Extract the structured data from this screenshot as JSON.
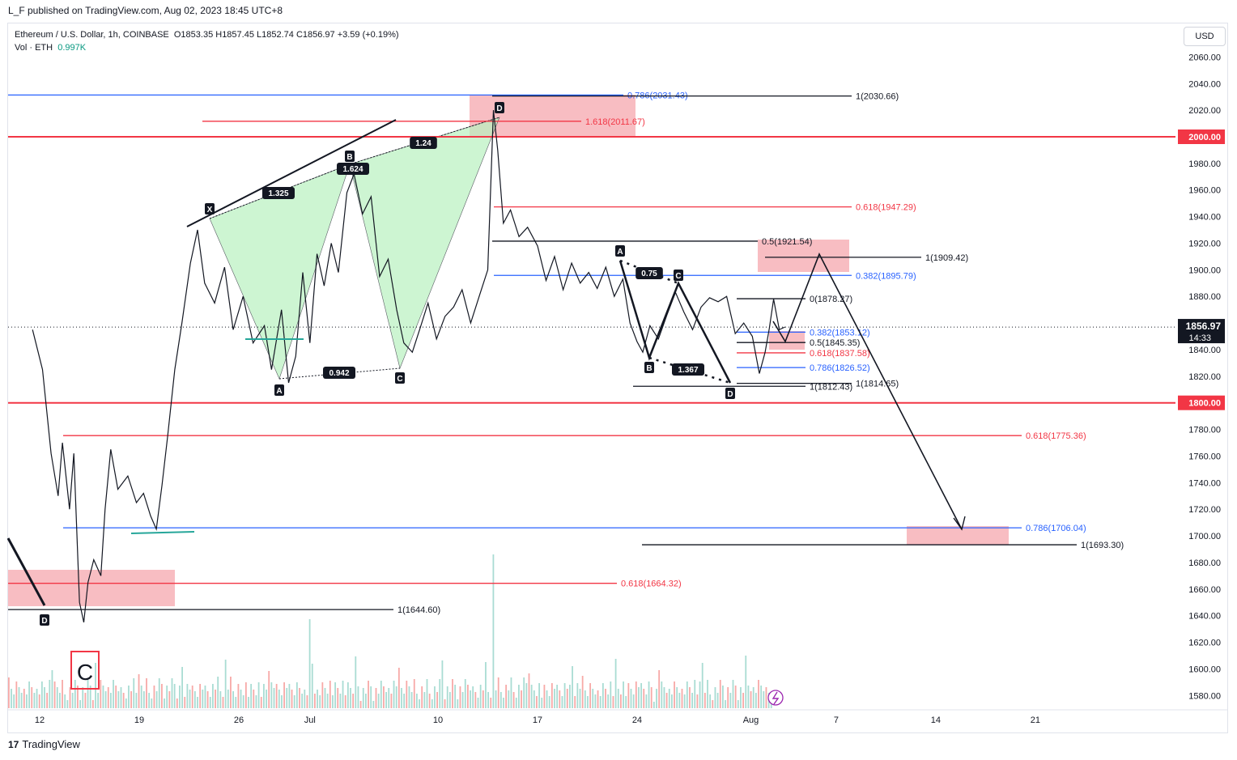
{
  "header": {
    "published": "L_F published on TradingView.com, Aug 02, 2023 18:45 UTC+8",
    "symbol": "Ethereum / U.S. Dollar, 1h, COINBASE",
    "ohlc": "O1853.35  H1857.45  L1852.74  C1856.97  +3.59 (+0.19%)",
    "volume_label": "Vol · ETH",
    "volume_value": "0.997K",
    "currency": "USD"
  },
  "footer": {
    "brand": "TradingView",
    "logo": "17"
  },
  "chart_data": {
    "type": "line",
    "title": "Ethereum / U.S. Dollar, 1h, COINBASE",
    "ylim": [
      1570,
      2075
    ],
    "y_ticks": [
      1580,
      1600,
      1620,
      1640,
      1660,
      1680,
      1700,
      1720,
      1740,
      1760,
      1780,
      1800,
      1820,
      1840,
      1860,
      1880,
      1900,
      1920,
      1940,
      1960,
      1980,
      2000,
      2020,
      2040,
      2060
    ],
    "x_ticks": [
      "12",
      "19",
      "26",
      "Jul",
      "10",
      "17",
      "24",
      "Aug",
      "7",
      "14",
      "21"
    ],
    "x_tick_days": [
      12,
      19,
      26,
      31,
      40,
      47,
      54,
      62,
      68,
      75,
      82
    ],
    "last_price": "1856.97",
    "countdown": "14:33",
    "price_path": [
      [
        11.5,
        1855
      ],
      [
        12.2,
        1825
      ],
      [
        12.8,
        1762
      ],
      [
        13.3,
        1730
      ],
      [
        13.6,
        1770
      ],
      [
        14.1,
        1720
      ],
      [
        14.4,
        1762
      ],
      [
        14.8,
        1650
      ],
      [
        15.1,
        1635
      ],
      [
        15.4,
        1665
      ],
      [
        15.8,
        1682
      ],
      [
        16.3,
        1670
      ],
      [
        16.6,
        1720
      ],
      [
        17.0,
        1765
      ],
      [
        17.5,
        1735
      ],
      [
        18.2,
        1745
      ],
      [
        18.8,
        1725
      ],
      [
        19.3,
        1732
      ],
      [
        19.8,
        1715
      ],
      [
        20.2,
        1705
      ],
      [
        20.6,
        1738
      ],
      [
        21.0,
        1775
      ],
      [
        21.5,
        1825
      ],
      [
        22.0,
        1860
      ],
      [
        22.6,
        1905
      ],
      [
        23.1,
        1930
      ],
      [
        23.6,
        1890
      ],
      [
        24.3,
        1875
      ],
      [
        25.0,
        1902
      ],
      [
        25.6,
        1855
      ],
      [
        26.3,
        1880
      ],
      [
        27.0,
        1845
      ],
      [
        27.8,
        1858
      ],
      [
        28.3,
        1825
      ],
      [
        29.0,
        1870
      ],
      [
        29.5,
        1815
      ],
      [
        30.0,
        1835
      ],
      [
        30.5,
        1898
      ],
      [
        31.0,
        1845
      ],
      [
        31.5,
        1912
      ],
      [
        32.0,
        1888
      ],
      [
        32.5,
        1920
      ],
      [
        33.0,
        1898
      ],
      [
        33.6,
        1958
      ],
      [
        34.1,
        1972
      ],
      [
        34.7,
        1942
      ],
      [
        35.3,
        1955
      ],
      [
        35.9,
        1895
      ],
      [
        36.5,
        1908
      ],
      [
        37.1,
        1870
      ],
      [
        37.6,
        1845
      ],
      [
        38.2,
        1838
      ],
      [
        38.8,
        1858
      ],
      [
        39.3,
        1875
      ],
      [
        39.9,
        1848
      ],
      [
        40.5,
        1865
      ],
      [
        41.1,
        1872
      ],
      [
        41.7,
        1885
      ],
      [
        42.3,
        1860
      ],
      [
        42.9,
        1880
      ],
      [
        43.5,
        1900
      ],
      [
        43.9,
        2020
      ],
      [
        44.2,
        1990
      ],
      [
        44.6,
        1935
      ],
      [
        45.1,
        1945
      ],
      [
        45.7,
        1925
      ],
      [
        46.3,
        1932
      ],
      [
        47.0,
        1918
      ],
      [
        47.6,
        1892
      ],
      [
        48.2,
        1910
      ],
      [
        48.8,
        1885
      ],
      [
        49.4,
        1905
      ],
      [
        50.0,
        1890
      ],
      [
        50.6,
        1898
      ],
      [
        51.2,
        1886
      ],
      [
        51.8,
        1902
      ],
      [
        52.4,
        1880
      ],
      [
        53.0,
        1893
      ],
      [
        53.5,
        1860
      ],
      [
        54.0,
        1846
      ],
      [
        54.4,
        1838
      ],
      [
        54.9,
        1858
      ],
      [
        55.5,
        1848
      ],
      [
        56.1,
        1866
      ],
      [
        56.7,
        1883
      ],
      [
        57.3,
        1868
      ],
      [
        57.9,
        1855
      ],
      [
        58.5,
        1872
      ],
      [
        59.1,
        1879
      ],
      [
        59.7,
        1876
      ],
      [
        60.3,
        1880
      ],
      [
        60.9,
        1852
      ],
      [
        61.5,
        1860
      ],
      [
        62.1,
        1850
      ],
      [
        62.6,
        1822
      ],
      [
        63.0,
        1838
      ],
      [
        63.3,
        1856
      ],
      [
        63.6,
        1878
      ],
      [
        64.0,
        1855
      ],
      [
        64.4,
        1857
      ]
    ],
    "volume_max": "1690",
    "horizontal_levels": [
      {
        "label": "2000.00",
        "value": 2000
      },
      {
        "label": "1800.00",
        "value": 1800
      }
    ],
    "fib_labels": [
      {
        "text": "0.786(2031.43)",
        "value": 2031.43,
        "color": "#2962ff"
      },
      {
        "text": "1(2030.66)",
        "value": 2030.66,
        "color": "#131722"
      },
      {
        "text": "1.618(2011.67)",
        "value": 2011.67,
        "color": "#f23645"
      },
      {
        "text": "0.618(1947.29)",
        "value": 1947.29,
        "color": "#f23645"
      },
      {
        "text": "0.5(1921.54)",
        "value": 1921.54,
        "color": "#131722"
      },
      {
        "text": "1(1909.42)",
        "value": 1909.42,
        "color": "#131722"
      },
      {
        "text": "0.382(1895.79)",
        "value": 1895.79,
        "color": "#2962ff"
      },
      {
        "text": "0(1878.27)",
        "value": 1878.27,
        "color": "#131722"
      },
      {
        "text": "0.382(1853.12)",
        "value": 1853.12,
        "color": "#2962ff"
      },
      {
        "text": "0.5(1845.35)",
        "value": 1845.35,
        "color": "#131722"
      },
      {
        "text": "0.618(1837.58)",
        "value": 1837.58,
        "color": "#f23645"
      },
      {
        "text": "0.786(1826.52)",
        "value": 1826.52,
        "color": "#2962ff"
      },
      {
        "text": "1(1814.65)",
        "value": 1814.65,
        "color": "#131722"
      },
      {
        "text": "1(1812.43)",
        "value": 1812.43,
        "color": "#131722"
      },
      {
        "text": "0.618(1775.36)",
        "value": 1775.36,
        "color": "#f23645"
      },
      {
        "text": "0.786(1706.04)",
        "value": 1706.04,
        "color": "#2962ff"
      },
      {
        "text": "1(1693.30)",
        "value": 1693.3,
        "color": "#131722"
      },
      {
        "text": "0.618(1664.32)",
        "value": 1664.32,
        "color": "#f23645"
      },
      {
        "text": "1(1644.60)",
        "value": 1644.6,
        "color": "#131722"
      }
    ],
    "ratio_labels": [
      "1.325",
      "1.624",
      "1.24",
      "0.942",
      "0.75",
      "1.367"
    ],
    "point_labels": [
      "X",
      "A",
      "B",
      "C",
      "D",
      "A",
      "B",
      "C",
      "D",
      "D"
    ],
    "wave_label": "C"
  }
}
